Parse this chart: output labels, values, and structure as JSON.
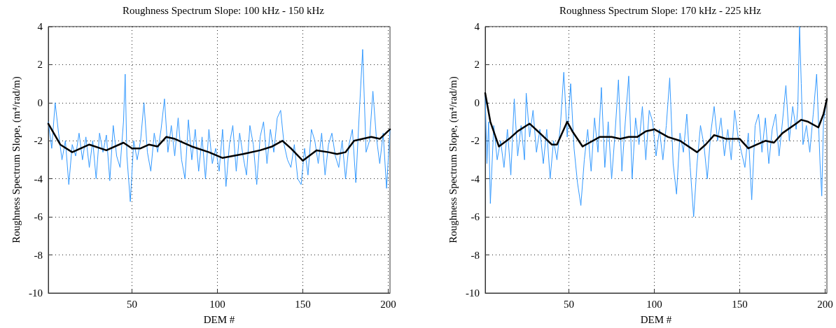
{
  "chart_data": [
    {
      "type": "line",
      "title": "Roughness Spectrum Slope: 100 kHz - 150 kHz",
      "xlabel": "DEM #",
      "ylabel": "Roughness Spectrum Slope, (m⁴/rad/m)",
      "xlim": [
        1,
        201
      ],
      "xticks": [
        50,
        100,
        150,
        200
      ],
      "ylim": [
        -10,
        4
      ],
      "yticks": [
        -10,
        -8,
        -6,
        -4,
        -2,
        0,
        2,
        4
      ],
      "grid": true,
      "marker": "none",
      "line_style": "solid",
      "series": [
        {
          "color": "#3399ff",
          "x": [
            1,
            3,
            5,
            7,
            9,
            11,
            13,
            15,
            17,
            19,
            21,
            23,
            25,
            27,
            29,
            31,
            33,
            35,
            37,
            39,
            41,
            43,
            45,
            46,
            47,
            49,
            51,
            53,
            55,
            57,
            59,
            61,
            63,
            65,
            67,
            69,
            71,
            73,
            75,
            77,
            79,
            81,
            83,
            85,
            87,
            89,
            91,
            93,
            95,
            97,
            99,
            101,
            103,
            105,
            107,
            109,
            111,
            113,
            115,
            117,
            119,
            121,
            123,
            125,
            127,
            129,
            131,
            133,
            135,
            137,
            139,
            141,
            143,
            145,
            147,
            149,
            151,
            153,
            155,
            157,
            159,
            161,
            163,
            165,
            167,
            169,
            171,
            173,
            175,
            177,
            179,
            181,
            183,
            185,
            187,
            189,
            191,
            193,
            195,
            197,
            199,
            201
          ],
          "values": [
            -1.0,
            -2.4,
            0.0,
            -1.6,
            -3.0,
            -2.0,
            -4.3,
            -2.2,
            -2.8,
            -1.6,
            -3.0,
            -1.8,
            -3.4,
            -2.0,
            -4.0,
            -1.6,
            -2.6,
            -1.7,
            -4.1,
            -1.2,
            -2.8,
            -3.4,
            -1.0,
            1.5,
            -2.8,
            -5.2,
            -2.0,
            -3.0,
            -2.0,
            0.0,
            -2.6,
            -3.6,
            -1.6,
            -2.6,
            -1.4,
            0.2,
            -2.6,
            -1.2,
            -2.8,
            -0.8,
            -3.0,
            -4.0,
            -0.9,
            -3.0,
            -1.4,
            -3.6,
            -1.8,
            -4.0,
            -1.4,
            -3.2,
            -2.4,
            -3.6,
            -1.4,
            -4.4,
            -2.2,
            -1.2,
            -3.6,
            -1.6,
            -2.8,
            -3.8,
            -1.2,
            -2.2,
            -4.3,
            -1.8,
            -1.0,
            -3.2,
            -1.4,
            -2.6,
            -0.8,
            -0.4,
            -2.2,
            -3.0,
            -3.4,
            -2.2,
            -4.0,
            -4.3,
            -2.4,
            -3.8,
            -1.4,
            -2.0,
            -3.2,
            -1.6,
            -3.8,
            -2.2,
            -1.6,
            -2.8,
            -3.4,
            -2.0,
            -4.0,
            -2.2,
            -1.4,
            -4.2,
            -0.6,
            2.8,
            -2.6,
            -2.0,
            0.6,
            -1.8,
            -3.2,
            -1.6,
            -4.5,
            -1.4
          ]
        },
        {
          "color": "#000000",
          "x": [
            1,
            8,
            15,
            25,
            35,
            45,
            50,
            55,
            60,
            65,
            70,
            75,
            85,
            95,
            103,
            115,
            125,
            132,
            138,
            143,
            150,
            158,
            165,
            170,
            175,
            180,
            185,
            190,
            195,
            201
          ],
          "values": [
            -1.1,
            -2.2,
            -2.6,
            -2.2,
            -2.5,
            -2.1,
            -2.4,
            -2.4,
            -2.2,
            -2.3,
            -1.8,
            -1.9,
            -2.3,
            -2.6,
            -2.9,
            -2.7,
            -2.5,
            -2.3,
            -2.0,
            -2.4,
            -3.05,
            -2.5,
            -2.6,
            -2.7,
            -2.6,
            -2.0,
            -1.9,
            -1.8,
            -1.9,
            -1.4
          ]
        }
      ]
    },
    {
      "type": "line",
      "title": "Roughness Spectrum Slope: 170 kHz - 225 kHz",
      "xlabel": "DEM #",
      "ylabel": "Roughness Spectrum Slope, (m⁴/rad/m)",
      "xlim": [
        1,
        201
      ],
      "xticks": [
        50,
        100,
        150,
        200
      ],
      "ylim": [
        -10,
        4
      ],
      "yticks": [
        -10,
        -8,
        -6,
        -4,
        -2,
        0,
        2,
        4
      ],
      "grid": true,
      "marker": "none",
      "line_style": "solid",
      "series": [
        {
          "color": "#3399ff",
          "x": [
            1,
            2,
            3,
            4,
            6,
            8,
            10,
            12,
            14,
            16,
            18,
            20,
            22,
            24,
            25,
            27,
            29,
            31,
            33,
            35,
            37,
            39,
            41,
            43,
            45,
            47,
            49,
            51,
            53,
            55,
            57,
            59,
            61,
            63,
            65,
            67,
            69,
            71,
            73,
            75,
            77,
            79,
            81,
            83,
            85,
            87,
            89,
            91,
            93,
            95,
            97,
            99,
            101,
            103,
            105,
            107,
            109,
            111,
            113,
            115,
            117,
            119,
            121,
            123,
            125,
            127,
            129,
            131,
            133,
            135,
            137,
            139,
            141,
            143,
            145,
            147,
            149,
            151,
            153,
            155,
            157,
            159,
            161,
            163,
            165,
            167,
            169,
            171,
            173,
            175,
            177,
            179,
            181,
            183,
            184,
            185,
            186,
            187,
            189,
            191,
            193,
            195,
            197,
            198,
            199,
            201
          ],
          "values": [
            0.4,
            -3.2,
            -1.0,
            -5.3,
            -1.2,
            -3.0,
            -2.0,
            -3.4,
            -1.4,
            -3.8,
            0.2,
            -2.8,
            -1.2,
            -3.0,
            0.5,
            -1.8,
            -0.4,
            -2.6,
            -1.4,
            -3.2,
            -1.4,
            -4.0,
            -2.0,
            -3.0,
            -1.2,
            1.6,
            -1.8,
            1.0,
            -2.4,
            -4.2,
            -5.4,
            -3.0,
            -1.4,
            -3.6,
            -0.8,
            -2.6,
            0.8,
            -3.4,
            -1.0,
            -4.0,
            -1.6,
            1.2,
            -3.6,
            -1.0,
            1.4,
            -4.0,
            -0.8,
            -2.2,
            -0.2,
            -3.0,
            -0.4,
            -1.0,
            -2.8,
            -1.4,
            -3.0,
            -1.2,
            1.3,
            -3.2,
            -4.8,
            -1.6,
            -2.6,
            -0.6,
            -3.4,
            -6.0,
            -3.2,
            -1.2,
            -2.2,
            -4.0,
            -1.6,
            -0.2,
            -2.0,
            -0.8,
            -2.8,
            -1.4,
            -3.0,
            -0.4,
            -1.8,
            -2.6,
            -3.4,
            -1.6,
            -5.1,
            -1.2,
            -0.6,
            -2.6,
            -0.8,
            -3.2,
            -1.4,
            -0.6,
            -2.8,
            -1.0,
            0.9,
            -2.0,
            -0.2,
            -1.4,
            -0.2,
            4.0,
            1.0,
            -2.2,
            -1.2,
            -2.6,
            -0.6,
            1.5,
            -3.2,
            -4.9,
            -1.0,
            0.2
          ]
        },
        {
          "color": "#000000",
          "x": [
            1,
            4,
            9,
            15,
            20,
            27,
            33,
            40,
            43,
            49,
            52,
            58,
            62,
            68,
            75,
            80,
            85,
            90,
            95,
            100,
            108,
            115,
            125,
            130,
            135,
            142,
            150,
            155,
            160,
            165,
            170,
            175,
            183,
            186,
            190,
            196,
            199,
            201
          ],
          "values": [
            0.5,
            -1.0,
            -2.3,
            -1.9,
            -1.5,
            -1.1,
            -1.6,
            -2.2,
            -2.2,
            -1.0,
            -1.5,
            -2.3,
            -2.1,
            -1.8,
            -1.8,
            -1.9,
            -1.8,
            -1.8,
            -1.5,
            -1.4,
            -1.8,
            -2.0,
            -2.6,
            -2.2,
            -1.7,
            -1.9,
            -1.9,
            -2.4,
            -2.2,
            -2.0,
            -2.1,
            -1.6,
            -1.1,
            -0.9,
            -1.0,
            -1.3,
            -0.6,
            0.2
          ]
        }
      ]
    }
  ]
}
